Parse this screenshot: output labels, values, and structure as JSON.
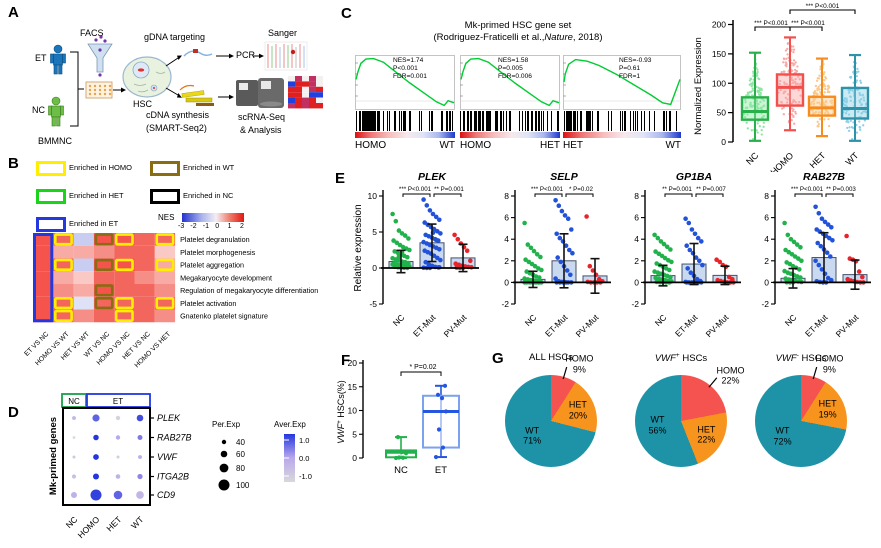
{
  "figure": {
    "panel_labels": {
      "a": "A",
      "b": "B",
      "c": "C",
      "d": "D",
      "e": "E",
      "f": "F",
      "g": "G"
    }
  },
  "panel_a": {
    "labels": {
      "et": "ET",
      "nc": "NC",
      "bmmnc": "BMMNC",
      "facs": "FACS",
      "hsc": "HSC",
      "gdna": "gDNA targeting",
      "pcr": "PCR",
      "sanger": "Sanger",
      "cdna_line1": "cDNA synthesis",
      "cdna_line2": "(SMART-Seq2)",
      "scrna_line1": "scRNA-Seq",
      "scrna_line2": "& Analysis"
    }
  },
  "panel_b": {
    "legend": [
      {
        "label": "Enriched in HOMO",
        "color": "#ffee00"
      },
      {
        "label": "Enriched in WT",
        "color": "#8a6d12"
      },
      {
        "label": "Enriched in HET",
        "color": "#19d419"
      },
      {
        "label": "Enriched in NC",
        "color": "#000000"
      },
      {
        "label": "Enriched in ET",
        "color": "#2338df"
      }
    ],
    "nes_legend": {
      "label": "NES",
      "ticks": [
        "-3",
        "-2",
        "-1",
        "0",
        "1",
        "2"
      ]
    },
    "chart_data": {
      "type": "heatmap",
      "value_label": "NES",
      "columns": [
        "ET VS NC",
        "HOMO VS WT",
        "HET VS WT",
        "WT VS NC",
        "HOMO VS NC",
        "HET VS NC",
        "HOMO VS HET"
      ],
      "rows": [
        "Platelet degranulation",
        "Platelet morphogenesis",
        "Platelet aggregation",
        "Megakaryocyte development",
        "Regulation of megakaryocyte differentiation",
        "Platelet activation",
        "Gnatenko platelet signature"
      ],
      "palette": {
        "r1": "#f4544c",
        "r2": "#f2665e",
        "sa": "#f58e86",
        "pk": "#f8aba5",
        "lp": "#fbc9c5",
        "lv": "#c9cdf1",
        "ll": "#dfe2f6"
      },
      "border_colors": {
        "yellow": "#ffee00",
        "brown": "#8a6d12",
        "blue": "#2338df"
      },
      "cells": [
        [
          "r1",
          "r2/yellow",
          "lv",
          "r1/brown",
          "r1/yellow",
          "r2",
          "r2/yellow"
        ],
        [
          "r1",
          "pk",
          "pk",
          "sa",
          "r2",
          "r2",
          "lp"
        ],
        [
          "r1",
          "r2/yellow",
          "lv",
          "r1/brown",
          "r1/yellow",
          "r2",
          "pk/yellow"
        ],
        [
          "r1",
          "pk",
          "lp",
          "r2",
          "r2",
          "sa",
          "pk"
        ],
        [
          "r1",
          "sa",
          "pk",
          "r1/brown",
          "r2",
          "r2",
          "sa"
        ],
        [
          "r1",
          "r2/yellow",
          "ll",
          "r2/brown",
          "r2/yellow",
          "r2",
          "r2/yellow"
        ],
        [
          "r1",
          "r2/yellow",
          "sa",
          "r2",
          "r2/yellow",
          "r2",
          "sa"
        ]
      ],
      "column_outline": {
        "column": 0,
        "color": "#2338df"
      }
    }
  },
  "panel_c": {
    "title_line1": "Mk-primed HSC gene set",
    "title_line2_pre": "(Rodriguez-Fraticelli et al.,",
    "title_line2_italic": "Nature",
    "title_line2_post": ", 2018)",
    "gsea_plots": [
      {
        "stats": [
          "NES=1.74",
          "P<0.001",
          "FDR=0.001"
        ],
        "left": "HOMO",
        "right": "WT"
      },
      {
        "stats": [
          "NES=1.58",
          "P=0.005",
          "FDR=0.006"
        ],
        "left": "HOMO",
        "right": "HET"
      },
      {
        "stats": [
          "NES=-0.93",
          "P=0.61",
          "FDR=1"
        ],
        "left": "HET",
        "right": "WT"
      }
    ],
    "chart_data": {
      "type": "box",
      "ylabel": "Normalized Expression",
      "ylim": [
        0,
        200
      ],
      "yticks": [
        0,
        50,
        100,
        150,
        200
      ],
      "groups": [
        {
          "name": "NC",
          "color": "#2ab04a",
          "light": "#8fe6a4",
          "min": 2,
          "q1": 38,
          "median": 52,
          "q3": 76,
          "max": 152
        },
        {
          "name": "HOMO",
          "color": "#f2504d",
          "light": "#f8a9a6",
          "min": 20,
          "q1": 62,
          "median": 93,
          "q3": 115,
          "max": 178
        },
        {
          "name": "HET",
          "color": "#f78c1e",
          "light": "#fac98d",
          "min": 10,
          "q1": 45,
          "median": 58,
          "q3": 77,
          "max": 142
        },
        {
          "name": "WT",
          "color": "#2e93a8",
          "light": "#8fd0e6",
          "min": 2,
          "q1": 40,
          "median": 57,
          "q3": 92,
          "max": 148
        }
      ],
      "significance": [
        {
          "from": 1,
          "to": 3,
          "label": "*** P<0.001",
          "level": "top"
        },
        {
          "from": 0,
          "to": 1,
          "label": "*** P<0.001",
          "level": "low"
        },
        {
          "from": 1,
          "to": 2,
          "label": "*** P<0.001",
          "level": "low"
        }
      ]
    }
  },
  "panel_d": {
    "ylabel": "Mk-primed genes",
    "header": [
      {
        "label": "NC",
        "color": "#18a048"
      },
      {
        "label": "ET",
        "color": "#2338df"
      }
    ],
    "size_legend": {
      "title": "Per.Exp",
      "sizes": [
        40,
        60,
        80,
        100
      ]
    },
    "color_legend": {
      "title": "Aver.Exp",
      "ticks": [
        "1.0",
        "0.0",
        "-1.0"
      ],
      "stops": [
        "#2436dd",
        "#b9a8ec",
        "#d8d8da"
      ]
    },
    "chart_data": {
      "type": "dotplot",
      "genes": [
        "PLEK",
        "RAB27B",
        "VWF",
        "ITGA2B",
        "CD9"
      ],
      "groups": [
        "NC",
        "HOMO",
        "HET",
        "WT"
      ],
      "percent_expressed": [
        [
          35,
          65,
          40,
          60
        ],
        [
          25,
          50,
          40,
          45
        ],
        [
          28,
          52,
          28,
          35
        ],
        [
          38,
          55,
          42,
          48
        ],
        [
          55,
          100,
          78,
          70
        ]
      ],
      "average_expression": [
        [
          -0.3,
          0.6,
          -0.9,
          0.8
        ],
        [
          -1.0,
          1.0,
          0.0,
          0.4
        ],
        [
          -0.7,
          1.0,
          -0.8,
          -0.1
        ],
        [
          -0.5,
          1.0,
          -0.2,
          0.3
        ],
        [
          -0.2,
          0.9,
          0.6,
          -0.3
        ]
      ]
    }
  },
  "panel_e": {
    "ylabel": "Relative expression",
    "group_colors": {
      "NC": "#21b24b",
      "ET-Mut": "#2152d9",
      "PV-Mut": "#e8242b"
    },
    "bar_fill": "#c9d9f0",
    "charts": [
      {
        "title": "PLEK",
        "ylim": [
          -5,
          10
        ],
        "yticks": [
          10,
          5,
          0,
          -5
        ],
        "groups": [
          "NC",
          "ET-Mut",
          "PV-Mut"
        ],
        "means": [
          0.9,
          3.5,
          1.4
        ],
        "sd": [
          1.55,
          2.6,
          1.9
        ],
        "significance": [
          {
            "from": 0,
            "to": 1,
            "label": "*** P<0.001"
          },
          {
            "from": 1,
            "to": 2,
            "label": "** P=0.001"
          }
        ],
        "points": [
          [
            7.5,
            6.5,
            5.2,
            4.8,
            4.5,
            4.1,
            3.8,
            3.5,
            3.2,
            2.9,
            2.7,
            2.5,
            2.3,
            2.1,
            1.9,
            1.7,
            1.5,
            1.35,
            1.2,
            1.05,
            0.9,
            0.8,
            0.7,
            0.6,
            0.5,
            0.42,
            0.35,
            0.28,
            0.22,
            0.16,
            0.1,
            0.06,
            0.03,
            0.01,
            0.5,
            1.1,
            1.6,
            2.2,
            0.75,
            0.25
          ],
          [
            9.5,
            8.7,
            8.0,
            7.5,
            7.1,
            6.7,
            6.3,
            6.0,
            5.7,
            5.4,
            5.1,
            4.8,
            4.6,
            4.4,
            4.2,
            4.0,
            3.8,
            3.6,
            3.4,
            3.2,
            3.0,
            2.8,
            2.6,
            2.4,
            2.2,
            2.0,
            1.7,
            1.4,
            1.1,
            0.8,
            0.5,
            0.3,
            0.15,
            0.08,
            0.04,
            0.02,
            0.01,
            4.9,
            3.9,
            0.1
          ],
          [
            4.6,
            4.0,
            3.4,
            2.9,
            2.4,
            1.0,
            0.6,
            0.45,
            0.3,
            0.22,
            0.15,
            0.1,
            0.06,
            0.03,
            0.01
          ]
        ]
      },
      {
        "title": "SELP",
        "ylim": [
          -2,
          8
        ],
        "yticks": [
          8,
          6,
          4,
          2,
          0,
          -2
        ],
        "groups": [
          "NC",
          "ET-Mut",
          "PV-Mut"
        ],
        "means": [
          0.28,
          2.0,
          0.6
        ],
        "sd": [
          0.75,
          2.5,
          1.6
        ],
        "significance": [
          {
            "from": 0,
            "to": 1,
            "label": "*** P<0.001"
          },
          {
            "from": 1,
            "to": 2,
            "label": "* P=0.02"
          }
        ],
        "points": [
          [
            5.5,
            3.5,
            3.2,
            2.9,
            2.6,
            2.35,
            2.1,
            1.9,
            1.7,
            1.5,
            1.3,
            1.15,
            1.0,
            0.85,
            0.7,
            0.55,
            0.45,
            0.35,
            0.28,
            0.2,
            0.15,
            0.1,
            0.07,
            0.05,
            0.03,
            0.02,
            0.01,
            0,
            0,
            0,
            0,
            0,
            0,
            0,
            0
          ],
          [
            7.6,
            7.1,
            6.6,
            6.2,
            5.9,
            4.9,
            4.5,
            4.1,
            3.8,
            3.4,
            3.0,
            2.7,
            2.3,
            1.9,
            1.5,
            1.1,
            0.7,
            0.35,
            0.1,
            0.05,
            0.02,
            0,
            0,
            0,
            0,
            0,
            0
          ],
          [
            6.1,
            1.5,
            1.1,
            0.7,
            0.3,
            0.1,
            0.05,
            0,
            0,
            0,
            0
          ]
        ]
      },
      {
        "title": "GP1BA",
        "ylim": [
          -2,
          8
        ],
        "yticks": [
          8,
          6,
          4,
          2,
          0,
          -2
        ],
        "groups": [
          "NC",
          "ET-Mut",
          "PV-Mut"
        ],
        "means": [
          0.63,
          1.7,
          0.65
        ],
        "sd": [
          0.95,
          1.9,
          0.85
        ],
        "significance": [
          {
            "from": 0,
            "to": 1,
            "label": "** P=0.001"
          },
          {
            "from": 1,
            "to": 2,
            "label": "** P=0.007"
          }
        ],
        "points": [
          [
            4.4,
            4.1,
            3.8,
            3.55,
            3.3,
            3.05,
            2.85,
            2.65,
            2.45,
            2.25,
            2.05,
            1.9,
            1.75,
            1.6,
            1.45,
            1.3,
            1.15,
            1.0,
            0.9,
            0.8,
            0.7,
            0.6,
            0.5,
            0.42,
            0.34,
            0.27,
            0.2,
            0.14,
            0.09,
            0.05,
            0.02,
            0,
            0,
            0
          ],
          [
            5.9,
            5.5,
            4.9,
            4.5,
            4.1,
            3.8,
            3.4,
            3.0,
            2.7,
            2.3,
            2.0,
            1.6,
            1.3,
            0.9,
            0.6,
            0.3,
            0.12,
            0.05,
            0,
            0,
            0,
            0,
            0,
            0
          ],
          [
            2.1,
            1.9,
            1.6,
            1.45,
            0.5,
            0.3,
            0.2,
            0.12,
            0.06,
            0,
            0,
            0
          ]
        ]
      },
      {
        "title": "RAB27B",
        "ylim": [
          -2,
          8
        ],
        "yticks": [
          8,
          6,
          4,
          2,
          0,
          -2
        ],
        "groups": [
          "NC",
          "ET-Mut",
          "PV-Mut"
        ],
        "means": [
          0.38,
          2.3,
          0.72
        ],
        "sd": [
          0.9,
          2.3,
          1.35
        ],
        "significance": [
          {
            "from": 0,
            "to": 1,
            "label": "*** P<0.001"
          },
          {
            "from": 1,
            "to": 2,
            "label": "** P=0.003"
          }
        ],
        "points": [
          [
            5.5,
            4.4,
            4.0,
            3.75,
            3.5,
            3.25,
            3.0,
            2.8,
            2.6,
            2.4,
            2.2,
            2.0,
            1.85,
            1.7,
            1.5,
            1.35,
            1.2,
            1.05,
            0.9,
            0.8,
            0.68,
            0.56,
            0.45,
            0.35,
            0.27,
            0.2,
            0.14,
            0.08,
            0.04,
            0.01,
            0,
            0
          ],
          [
            7.0,
            6.4,
            5.9,
            5.6,
            5.35,
            5.1,
            4.9,
            4.7,
            4.5,
            4.3,
            4.1,
            3.9,
            3.65,
            3.35,
            3.05,
            2.75,
            2.4,
            2.0,
            1.6,
            1.2,
            0.8,
            0.4,
            0.2,
            0.1,
            0.04,
            0,
            0
          ],
          [
            4.3,
            2.2,
            2.1,
            1.95,
            1.0,
            0.5,
            0.3,
            0.18,
            0.1,
            0.04,
            0,
            0
          ]
        ]
      }
    ]
  },
  "panel_f": {
    "ylabel": {
      "italic": "VWF",
      "sup": "+",
      "rest": " HSCs(%)"
    },
    "chart_data": {
      "type": "box",
      "ylim": [
        0,
        20
      ],
      "yticks": [
        0,
        5,
        10,
        15,
        20
      ],
      "significance": [
        {
          "from": 0,
          "to": 1,
          "label": "* P=0.02"
        }
      ],
      "groups": [
        {
          "name": "NC",
          "color": "#22b14c",
          "min": 0,
          "q1": 0.15,
          "median": 1.2,
          "q3": 1.6,
          "max": 4.4,
          "points": [
            0,
            0.05,
            0.1,
            1.0,
            1.25,
            4.4
          ]
        },
        {
          "name": "ET",
          "color": "#2456e0",
          "min": 0.2,
          "q1": 2.2,
          "median": 9.8,
          "q3": 13.1,
          "max": 15.2,
          "points": [
            0.2,
            2.2,
            6.0,
            9.8,
            12.6,
            13.3,
            15.2
          ]
        }
      ]
    }
  },
  "panel_g": {
    "slice_colors": {
      "WT": "#1e93a8",
      "HET": "#f7941e",
      "HOMO": "#f4534f"
    },
    "chart_data": [
      {
        "type": "pie",
        "t_italic": "",
        "t_sup": "",
        "t_rest": "ALL HSCs",
        "slices": [
          {
            "name": "HOMO",
            "pct": 9
          },
          {
            "name": "HET",
            "pct": 20
          },
          {
            "name": "WT",
            "pct": 71
          }
        ]
      },
      {
        "type": "pie",
        "t_italic": "VWF",
        "t_sup": "+",
        "t_rest": " HSCs",
        "slices": [
          {
            "name": "HOMO",
            "pct": 22
          },
          {
            "name": "HET",
            "pct": 22
          },
          {
            "name": "WT",
            "pct": 56
          }
        ]
      },
      {
        "type": "pie",
        "t_italic": "VWF",
        "t_sup": "-",
        "t_rest": " HSCs",
        "slices": [
          {
            "name": "HOMO",
            "pct": 9
          },
          {
            "name": "HET",
            "pct": 19
          },
          {
            "name": "WT",
            "pct": 72
          }
        ]
      }
    ]
  }
}
